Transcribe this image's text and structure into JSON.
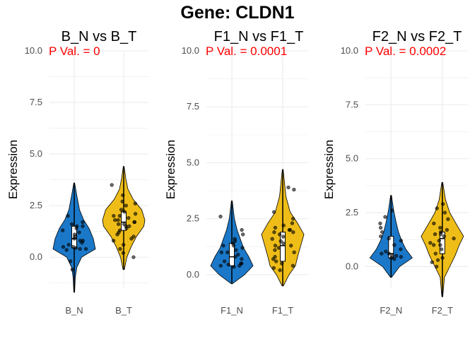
{
  "title": "Gene: CLDN1",
  "colors": {
    "normal": "#1b78c8",
    "tumor": "#eebd18",
    "pval": "#ff0000",
    "grid": "#ebebeb",
    "point": "#000000"
  },
  "chart_data": [
    {
      "type": "violin",
      "title": "B_N vs B_T",
      "ylabel": "Expression",
      "annotation": "P Val. = 0",
      "categories": [
        "B_N",
        "B_T"
      ],
      "ylim": [
        -1.5,
        10.0
      ],
      "yticks": [
        0.0,
        2.5,
        5.0,
        7.5,
        10.0
      ],
      "ytick_labels": [
        "0.0",
        "2.5",
        "5.0",
        "7.5",
        "10.0"
      ],
      "series": [
        {
          "category": "B_N",
          "min": -1.7,
          "max": 3.6,
          "q1": 0.45,
          "median": 0.9,
          "q3": 1.5,
          "density": [
            [
              -1.7,
              0.02
            ],
            [
              -1.0,
              0.05
            ],
            [
              -0.5,
              0.12
            ],
            [
              0.0,
              0.35
            ],
            [
              0.4,
              1.0
            ],
            [
              0.9,
              0.9
            ],
            [
              1.4,
              0.7
            ],
            [
              1.8,
              0.45
            ],
            [
              2.3,
              0.25
            ],
            [
              3.0,
              0.12
            ],
            [
              3.6,
              0.02
            ]
          ],
          "points": [
            0.35,
            0.4,
            0.45,
            0.5,
            0.6,
            0.7,
            0.8,
            0.9,
            1.0,
            1.1,
            1.3,
            1.4,
            1.5,
            1.6,
            1.7,
            -0.2,
            -0.6,
            2.0,
            0.4,
            1.2,
            0.8,
            1.5,
            0.5
          ]
        },
        {
          "category": "B_T",
          "min": -0.6,
          "max": 4.4,
          "q1": 1.3,
          "median": 1.7,
          "q3": 2.2,
          "density": [
            [
              -0.6,
              0.03
            ],
            [
              0.0,
              0.15
            ],
            [
              0.5,
              0.35
            ],
            [
              1.0,
              0.6
            ],
            [
              1.5,
              0.95
            ],
            [
              1.8,
              1.0
            ],
            [
              2.3,
              0.85
            ],
            [
              2.8,
              0.45
            ],
            [
              3.3,
              0.2
            ],
            [
              3.8,
              0.1
            ],
            [
              4.4,
              0.02
            ]
          ],
          "points": [
            0.0,
            0.2,
            0.4,
            0.6,
            0.8,
            1.0,
            1.2,
            1.3,
            1.4,
            1.5,
            1.6,
            1.6,
            1.7,
            1.7,
            1.8,
            1.9,
            2.0,
            2.1,
            2.2,
            2.3,
            2.5,
            2.7,
            3.0,
            3.5,
            1.5,
            2.0,
            1.1,
            0.9,
            2.6,
            1.8
          ]
        }
      ]
    },
    {
      "type": "violin",
      "title": "F1_N vs F1_T",
      "ylabel": "Expression",
      "annotation": "P Val. = 0.0001",
      "categories": [
        "F1_N",
        "F1_T"
      ],
      "ylim": [
        -0.6,
        10.0
      ],
      "yticks": [
        0.0,
        2.5,
        5.0,
        7.5,
        10.0
      ],
      "ytick_labels": [
        "0.0",
        "2.5",
        "5.0",
        "7.5",
        "10.0"
      ],
      "series": [
        {
          "category": "F1_N",
          "min": -0.4,
          "max": 3.3,
          "q1": 0.4,
          "median": 0.8,
          "q3": 1.4,
          "density": [
            [
              -0.4,
              0.03
            ],
            [
              0.0,
              0.6
            ],
            [
              0.4,
              1.0
            ],
            [
              0.8,
              0.8
            ],
            [
              1.2,
              0.55
            ],
            [
              1.6,
              0.4
            ],
            [
              2.0,
              0.25
            ],
            [
              2.5,
              0.12
            ],
            [
              3.3,
              0.02
            ]
          ],
          "points": [
            0.35,
            0.4,
            0.45,
            0.5,
            0.6,
            0.7,
            0.8,
            0.9,
            1.0,
            1.1,
            1.2,
            1.3,
            1.4,
            1.5,
            1.6,
            1.8,
            2.0,
            2.6,
            0.4,
            0.5,
            1.0,
            1.3
          ]
        },
        {
          "category": "F1_T",
          "min": -0.5,
          "max": 4.7,
          "q1": 0.6,
          "median": 1.3,
          "q3": 1.9,
          "density": [
            [
              -0.5,
              0.03
            ],
            [
              0.0,
              0.3
            ],
            [
              0.4,
              0.6
            ],
            [
              0.8,
              0.7
            ],
            [
              1.3,
              0.85
            ],
            [
              1.8,
              1.0
            ],
            [
              2.3,
              0.7
            ],
            [
              2.8,
              0.35
            ],
            [
              3.5,
              0.15
            ],
            [
              4.7,
              0.02
            ]
          ],
          "points": [
            0.2,
            0.4,
            0.5,
            0.6,
            0.8,
            1.0,
            1.2,
            1.3,
            1.4,
            1.6,
            1.7,
            1.8,
            1.9,
            2.0,
            2.1,
            2.2,
            2.3,
            2.5,
            2.8,
            3.8,
            3.9,
            0.3,
            1.1,
            1.5,
            2.0,
            0.7,
            1.3,
            1.9
          ]
        }
      ]
    },
    {
      "type": "violin",
      "title": "F2_N vs F2_T",
      "ylabel": "Expression",
      "annotation": "P Val. = 0.0002",
      "categories": [
        "F2_N",
        "F2_T"
      ],
      "ylim": [
        -1.0,
        10.0
      ],
      "yticks": [
        0.0,
        2.5,
        5.0,
        7.5,
        10.0
      ],
      "ytick_labels": [
        "0.0",
        "2.5",
        "5.0",
        "7.5",
        "10.0"
      ],
      "series": [
        {
          "category": "F2_N",
          "min": -0.5,
          "max": 3.3,
          "q1": 0.4,
          "median": 0.6,
          "q3": 1.4,
          "density": [
            [
              -0.5,
              0.03
            ],
            [
              0.0,
              0.4
            ],
            [
              0.4,
              1.0
            ],
            [
              0.8,
              0.7
            ],
            [
              1.2,
              0.5
            ],
            [
              1.6,
              0.35
            ],
            [
              2.0,
              0.25
            ],
            [
              2.6,
              0.12
            ],
            [
              3.3,
              0.02
            ]
          ],
          "points": [
            0.35,
            0.4,
            0.45,
            0.5,
            0.6,
            0.7,
            0.8,
            1.0,
            1.2,
            1.4,
            1.6,
            1.8,
            2.0,
            2.3,
            2.6,
            0.5,
            0.6,
            1.3
          ]
        },
        {
          "category": "F2_T",
          "min": -1.4,
          "max": 3.9,
          "q1": 0.6,
          "median": 1.3,
          "q3": 1.6,
          "density": [
            [
              -1.4,
              0.02
            ],
            [
              -0.5,
              0.1
            ],
            [
              0.0,
              0.35
            ],
            [
              0.5,
              0.6
            ],
            [
              1.0,
              0.8
            ],
            [
              1.4,
              1.0
            ],
            [
              1.9,
              0.7
            ],
            [
              2.5,
              0.35
            ],
            [
              3.1,
              0.15
            ],
            [
              3.9,
              0.02
            ]
          ],
          "points": [
            0.0,
            0.2,
            0.4,
            0.6,
            0.8,
            1.0,
            1.1,
            1.2,
            1.3,
            1.4,
            1.5,
            1.6,
            1.7,
            1.8,
            2.0,
            2.2,
            2.5,
            2.7,
            2.9,
            0.3,
            1.5,
            1.0
          ]
        }
      ]
    }
  ]
}
